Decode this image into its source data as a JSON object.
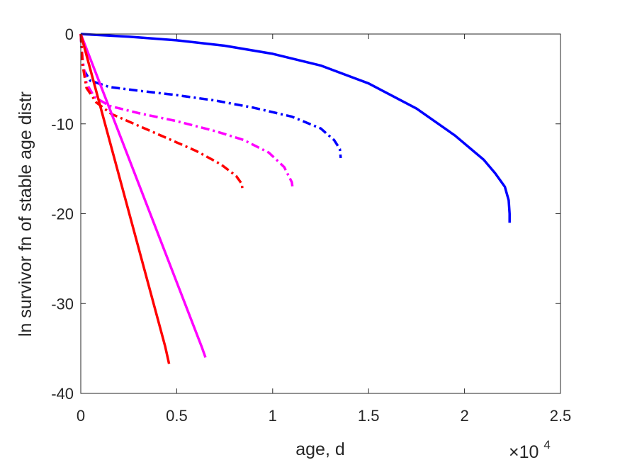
{
  "chart_data": {
    "type": "line",
    "title": "",
    "xlabel": "age, d",
    "ylabel": "ln survivor fn of stable age distr",
    "x_exponent_label": "×10",
    "x_exponent_power": "4",
    "xlim": [
      0,
      25000
    ],
    "ylim": [
      -40,
      0
    ],
    "xticks": [
      0,
      5000,
      10000,
      15000,
      20000,
      25000
    ],
    "xtick_labels": [
      "0",
      "0.5",
      "1",
      "1.5",
      "2",
      "2.5"
    ],
    "yticks": [
      -40,
      -30,
      -20,
      -10,
      0
    ],
    "ytick_labels": [
      "-40",
      "-30",
      "-20",
      "-10",
      "0"
    ],
    "grid": false,
    "legend": "none",
    "series": [
      {
        "color": "#0000ff",
        "style": "solid",
        "points": [
          [
            0,
            0
          ],
          [
            2500,
            -0.3
          ],
          [
            5000,
            -0.7
          ],
          [
            7500,
            -1.3
          ],
          [
            10000,
            -2.2
          ],
          [
            12500,
            -3.5
          ],
          [
            15000,
            -5.5
          ],
          [
            17500,
            -8.3
          ],
          [
            19500,
            -11.3
          ],
          [
            21000,
            -14.0
          ],
          [
            21600,
            -15.5
          ],
          [
            22100,
            -17.0
          ],
          [
            22300,
            -18.5
          ],
          [
            22350,
            -20.0
          ],
          [
            22350,
            -21.0
          ]
        ]
      },
      {
        "color": "#0000ff",
        "style": "dashdot",
        "points": [
          [
            0,
            0
          ],
          [
            50,
            -2.0
          ],
          [
            150,
            -4.0
          ],
          [
            500,
            -5.2
          ],
          [
            1500,
            -5.9
          ],
          [
            3000,
            -6.3
          ],
          [
            5000,
            -6.8
          ],
          [
            7000,
            -7.4
          ],
          [
            9000,
            -8.2
          ],
          [
            11000,
            -9.2
          ],
          [
            12500,
            -10.5
          ],
          [
            13200,
            -11.8
          ],
          [
            13500,
            -12.8
          ],
          [
            13550,
            -13.8
          ]
        ]
      },
      {
        "color": "#ff00ff",
        "style": "dashdot",
        "points": [
          [
            0,
            0
          ],
          [
            100,
            -3.0
          ],
          [
            300,
            -5.5
          ],
          [
            700,
            -7.0
          ],
          [
            1500,
            -8.0
          ],
          [
            3000,
            -8.8
          ],
          [
            5000,
            -9.7
          ],
          [
            7000,
            -10.8
          ],
          [
            8500,
            -11.8
          ],
          [
            9800,
            -13.2
          ],
          [
            10600,
            -14.8
          ],
          [
            11000,
            -16.5
          ],
          [
            11050,
            -17.3
          ]
        ]
      },
      {
        "color": "#ff0000",
        "style": "dashdot",
        "points": [
          [
            0,
            0
          ],
          [
            100,
            -3.5
          ],
          [
            300,
            -6.0
          ],
          [
            800,
            -7.6
          ],
          [
            1600,
            -8.9
          ],
          [
            3000,
            -10.2
          ],
          [
            4500,
            -11.6
          ],
          [
            6000,
            -13.0
          ],
          [
            7300,
            -14.5
          ],
          [
            8100,
            -15.8
          ],
          [
            8400,
            -16.7
          ],
          [
            8420,
            -17.3
          ]
        ]
      },
      {
        "color": "#ff00ff",
        "style": "solid",
        "points": [
          [
            0,
            0
          ],
          [
            6300,
            -34.8
          ],
          [
            6500,
            -36.0
          ]
        ]
      },
      {
        "color": "#ff0000",
        "style": "solid",
        "points": [
          [
            0,
            0
          ],
          [
            4400,
            -34.8
          ],
          [
            4600,
            -36.7
          ]
        ]
      }
    ]
  }
}
